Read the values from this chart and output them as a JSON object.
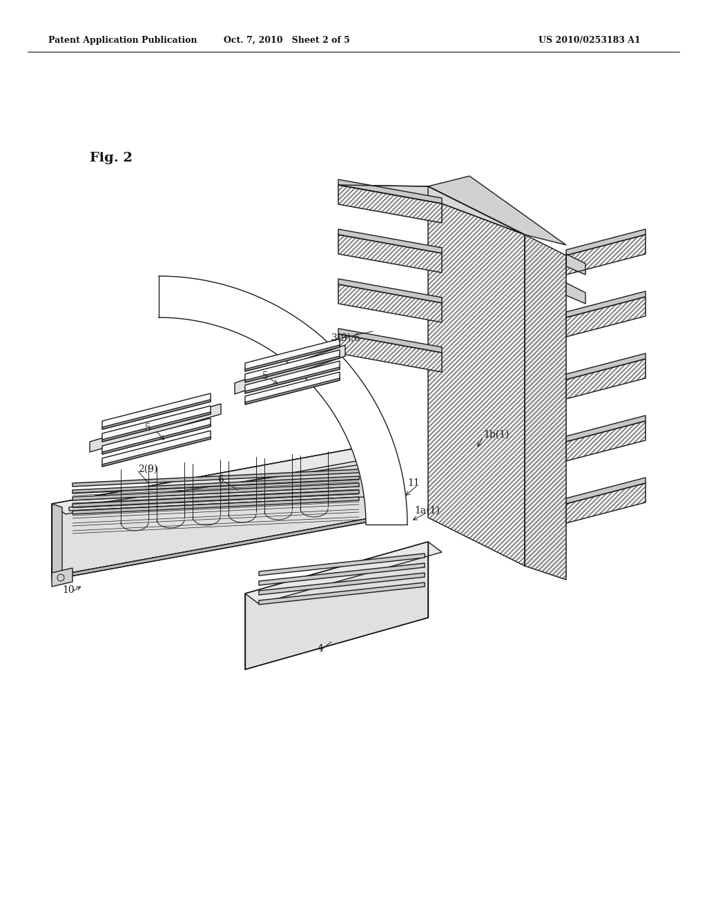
{
  "title_left": "Patent Application Publication",
  "title_mid": "Oct. 7, 2010   Sheet 2 of 5",
  "title_right": "US 2010/0253183 A1",
  "fig_label": "Fig. 2",
  "background_color": "#ffffff",
  "line_color": "#1a1a1a",
  "label_fs": 9,
  "header_fs": 9
}
